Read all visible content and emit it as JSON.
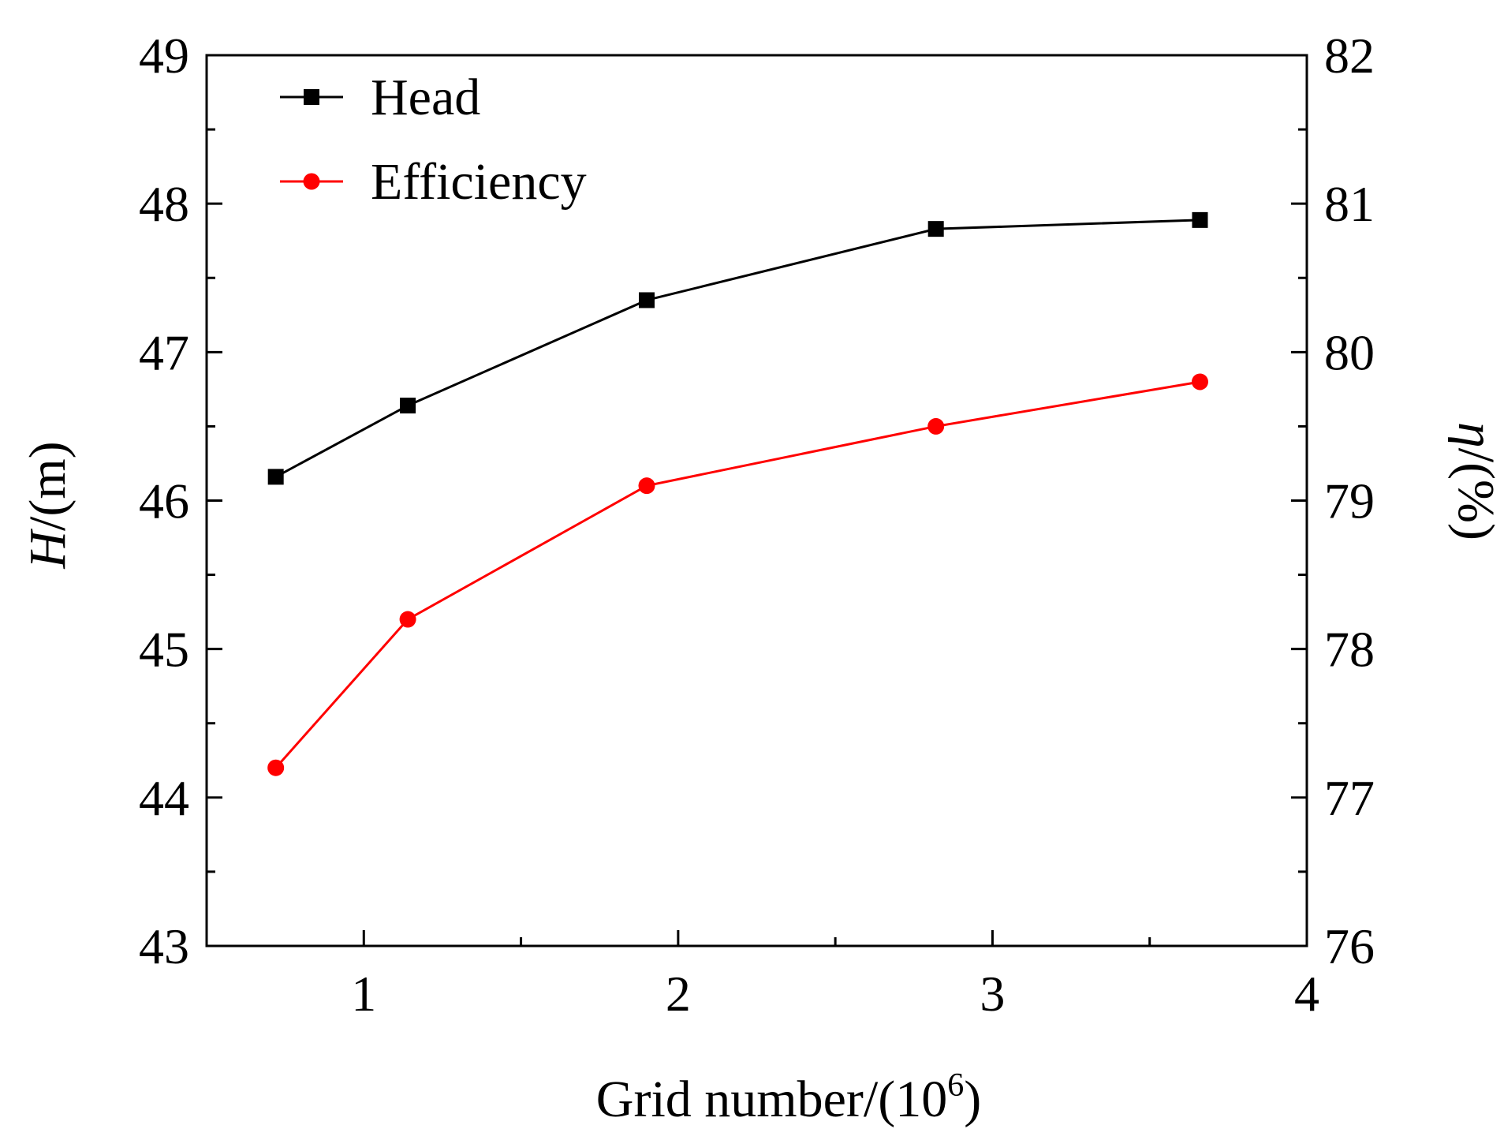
{
  "chart_data": {
    "type": "line",
    "title": "",
    "xlabel": "Grid number/(10",
    "xlabel_superscript": "6",
    "xlabel_close": ")",
    "ylabel_left_var": "H",
    "ylabel_left_unit": "/(m)",
    "ylabel_right_var": "η",
    "ylabel_right_unit": "/(%)",
    "xlim": [
      0.5,
      4
    ],
    "ylim_left": [
      43,
      49
    ],
    "ylim_right": [
      76,
      82
    ],
    "x_ticks": [
      1,
      2,
      3,
      4
    ],
    "x_minor_ticks": [
      1.5,
      2.5,
      3.5
    ],
    "y_left_ticks": [
      43,
      44,
      45,
      46,
      47,
      48,
      49
    ],
    "y_left_minor_ticks": [
      43.5,
      44.5,
      45.5,
      46.5,
      47.5,
      48.5
    ],
    "y_right_ticks": [
      76,
      77,
      78,
      79,
      80,
      81,
      82
    ],
    "y_right_minor_ticks": [
      76.5,
      77.5,
      78.5,
      79.5,
      80.5,
      81.5
    ],
    "legend_position": "top-left",
    "grid": false,
    "series": [
      {
        "name": "Head",
        "axis": "left",
        "color": "#000000",
        "marker": "square",
        "x": [
          0.72,
          1.14,
          1.9,
          2.82,
          3.66
        ],
        "values": [
          46.16,
          46.64,
          47.35,
          47.83,
          47.89
        ]
      },
      {
        "name": "Efficiency",
        "axis": "right",
        "color": "#ff0000",
        "marker": "circle",
        "x": [
          0.72,
          1.14,
          1.9,
          2.82,
          3.66
        ],
        "values": [
          77.2,
          78.2,
          79.1,
          79.5,
          79.8
        ]
      }
    ]
  }
}
